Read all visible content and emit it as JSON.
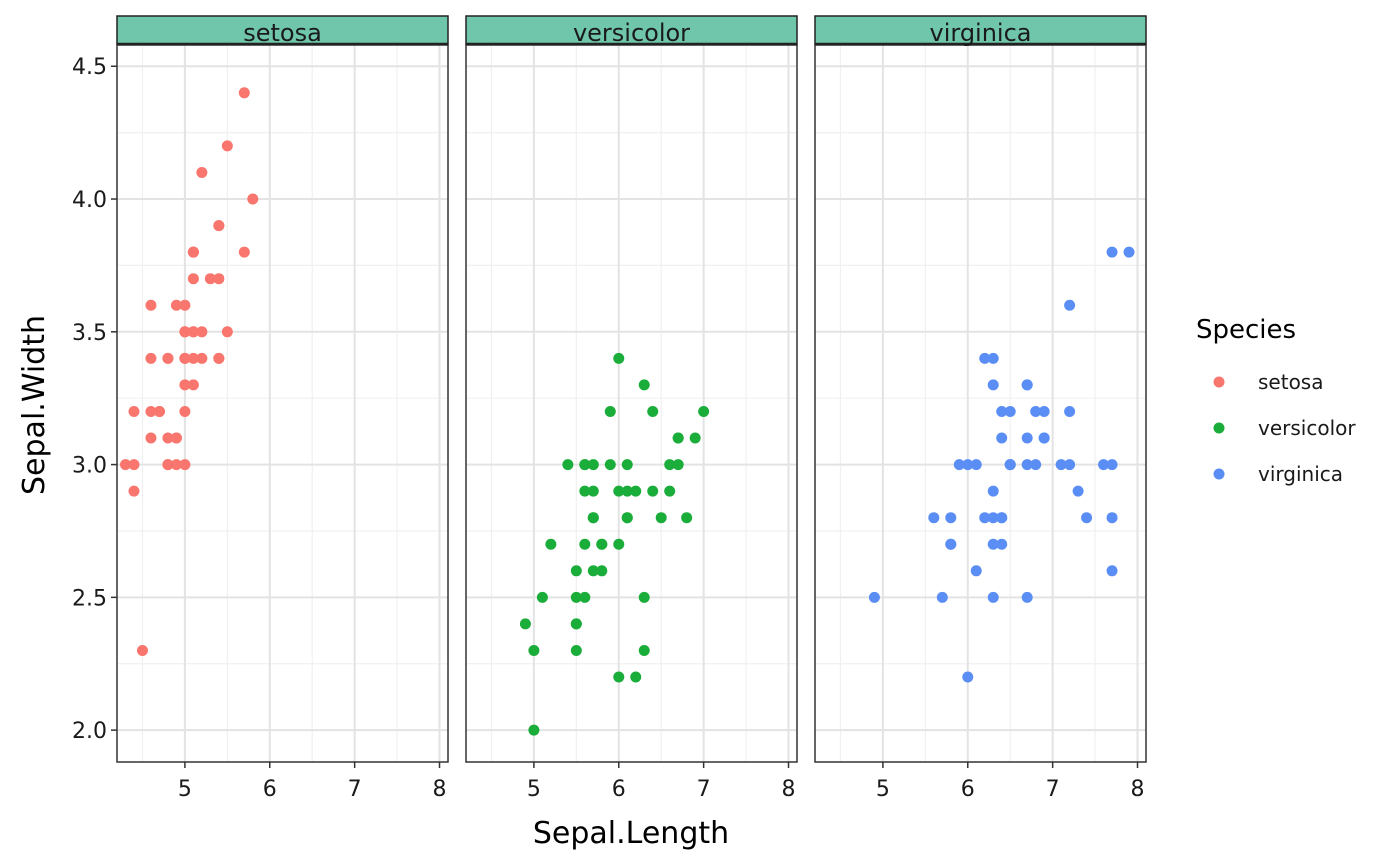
{
  "chart_data": {
    "type": "scatter",
    "xlabel": "Sepal.Length",
    "ylabel": "Sepal.Width",
    "xlim": [
      4.2,
      8.1
    ],
    "ylim": [
      1.88,
      4.58
    ],
    "x_ticks": [
      5,
      6,
      7,
      8
    ],
    "y_ticks": [
      2.0,
      2.5,
      3.0,
      3.5,
      4.0,
      4.5
    ],
    "grid": true,
    "legend": {
      "title": "Species",
      "placement": "right"
    },
    "strip_color": "#6fc6ab",
    "series": [
      {
        "name": "setosa",
        "color": "#f8766d",
        "x": [
          5.1,
          4.9,
          4.7,
          4.6,
          5.0,
          5.4,
          4.6,
          5.0,
          4.4,
          4.9,
          5.4,
          4.8,
          4.8,
          4.3,
          5.8,
          5.7,
          5.4,
          5.1,
          5.7,
          5.1,
          5.4,
          5.1,
          4.6,
          5.1,
          4.8,
          5.0,
          5.0,
          5.2,
          5.2,
          4.7,
          4.8,
          5.4,
          5.2,
          5.5,
          4.9,
          5.0,
          5.5,
          4.9,
          4.4,
          5.1,
          5.0,
          4.5,
          4.4,
          5.0,
          5.1,
          4.8,
          5.1,
          4.6,
          5.3,
          5.0
        ],
        "y": [
          3.5,
          3.0,
          3.2,
          3.1,
          3.6,
          3.9,
          3.4,
          3.4,
          2.9,
          3.1,
          3.7,
          3.4,
          3.0,
          3.0,
          4.0,
          4.4,
          3.9,
          3.5,
          3.8,
          3.8,
          3.4,
          3.7,
          3.6,
          3.3,
          3.4,
          3.0,
          3.4,
          3.5,
          3.4,
          3.2,
          3.1,
          3.4,
          4.1,
          4.2,
          3.1,
          3.2,
          3.5,
          3.6,
          3.0,
          3.4,
          3.5,
          2.3,
          3.2,
          3.5,
          3.8,
          3.0,
          3.8,
          3.2,
          3.7,
          3.3
        ]
      },
      {
        "name": "versicolor",
        "color": "#1aad3a",
        "x": [
          7.0,
          6.4,
          6.9,
          5.5,
          6.5,
          5.7,
          6.3,
          4.9,
          6.6,
          5.2,
          5.0,
          5.9,
          6.0,
          6.1,
          5.6,
          6.7,
          5.6,
          5.8,
          6.2,
          5.6,
          5.9,
          6.1,
          6.3,
          6.1,
          6.4,
          6.6,
          6.8,
          6.7,
          6.0,
          5.7,
          5.5,
          5.5,
          5.8,
          6.0,
          5.4,
          6.0,
          6.7,
          6.3,
          5.6,
          5.5,
          5.5,
          6.1,
          5.8,
          5.0,
          5.6,
          5.7,
          5.7,
          6.2,
          5.1,
          5.7
        ],
        "y": [
          3.2,
          3.2,
          3.1,
          2.3,
          2.8,
          2.8,
          3.3,
          2.4,
          2.9,
          2.7,
          2.0,
          3.0,
          2.2,
          2.9,
          2.9,
          3.1,
          3.0,
          2.7,
          2.2,
          2.5,
          3.2,
          2.8,
          2.5,
          2.8,
          2.9,
          3.0,
          2.8,
          3.0,
          2.9,
          2.6,
          2.4,
          2.4,
          2.7,
          2.7,
          3.0,
          3.4,
          3.1,
          2.3,
          3.0,
          2.5,
          2.6,
          3.0,
          2.6,
          2.3,
          2.7,
          3.0,
          2.9,
          2.9,
          2.5,
          2.8
        ]
      },
      {
        "name": "virginica",
        "color": "#5b8ef5",
        "x": [
          6.3,
          5.8,
          7.1,
          6.3,
          6.5,
          7.6,
          4.9,
          7.3,
          6.7,
          7.2,
          6.5,
          6.4,
          6.8,
          5.7,
          5.8,
          6.4,
          6.5,
          7.7,
          7.7,
          6.0,
          6.9,
          5.6,
          7.7,
          6.3,
          6.7,
          7.2,
          6.2,
          6.1,
          6.4,
          7.2,
          7.4,
          7.9,
          6.4,
          6.3,
          6.1,
          7.7,
          6.3,
          6.4,
          6.0,
          6.9,
          6.7,
          6.9,
          5.8,
          6.8,
          6.7,
          6.7,
          6.3,
          6.5,
          6.2,
          5.9
        ],
        "y": [
          3.3,
          2.7,
          3.0,
          2.9,
          3.0,
          3.0,
          2.5,
          2.9,
          2.5,
          3.6,
          3.2,
          2.7,
          3.0,
          2.5,
          2.8,
          3.2,
          3.0,
          3.8,
          2.6,
          2.2,
          3.2,
          2.8,
          2.8,
          2.7,
          3.3,
          3.2,
          2.8,
          3.0,
          2.8,
          3.0,
          2.8,
          3.8,
          2.8,
          2.8,
          2.6,
          3.0,
          3.4,
          3.1,
          3.0,
          3.1,
          3.1,
          3.1,
          2.7,
          3.2,
          3.3,
          3.0,
          2.5,
          3.0,
          3.4,
          3.0
        ]
      }
    ]
  }
}
